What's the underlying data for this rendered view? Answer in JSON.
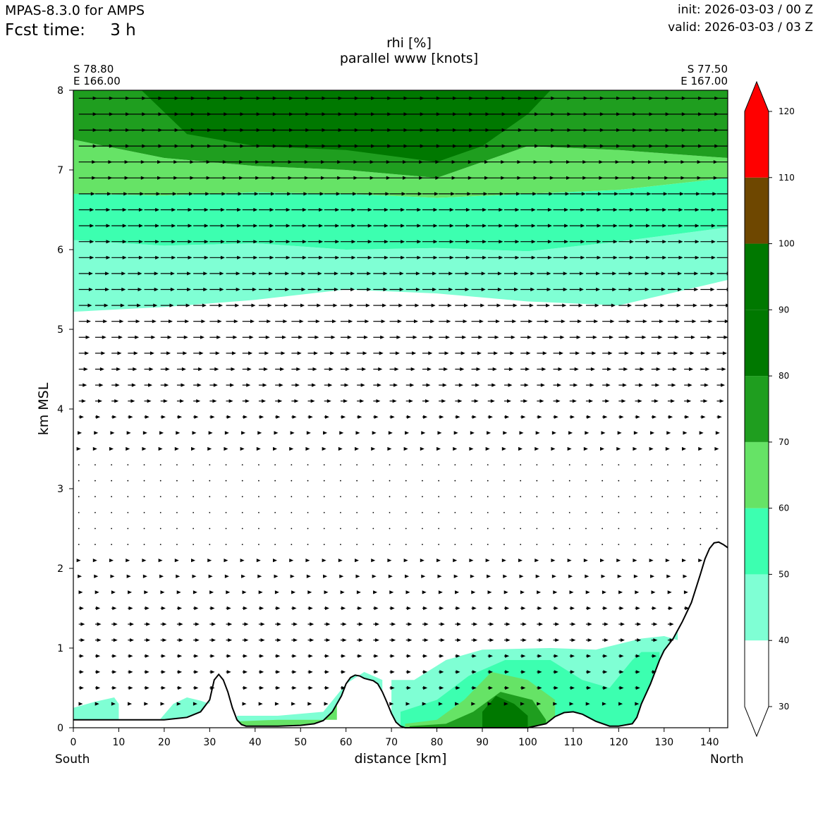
{
  "header": {
    "model": "MPAS-8.3.0 for AMPS",
    "fcst_label": "Fcst time:",
    "fcst_value": "3 h",
    "init": "init: 2026-03-03 / 00 Z",
    "valid": "valid: 2026-03-03 / 03 Z"
  },
  "corners": {
    "left_lat": "S 78.80",
    "left_lon": "E 166.00",
    "right_lat": "S 77.50",
    "right_lon": "E 167.00"
  },
  "direction": {
    "left": "South",
    "right": "North"
  },
  "chart_data": {
    "type": "heatmap",
    "title": "rhi [%]",
    "subtitle": "parallel www [knots]",
    "xlabel": "distance [km]",
    "ylabel": "km MSL",
    "xlim": [
      0,
      144
    ],
    "ylim": [
      0,
      8
    ],
    "xticks": [
      "0",
      "10",
      "20",
      "30",
      "40",
      "50",
      "60",
      "70",
      "80",
      "90",
      "100",
      "110",
      "120",
      "130",
      "140"
    ],
    "yticks": [
      "0",
      "1",
      "2",
      "3",
      "4",
      "5",
      "6",
      "7",
      "8"
    ],
    "colorbar": {
      "levels": [
        30,
        40,
        50,
        60,
        70,
        80,
        90,
        100,
        110,
        120
      ],
      "tick_labels": [
        "30",
        "40",
        "50",
        "60",
        "70",
        "80",
        "90",
        "100",
        "110",
        "120"
      ],
      "colors": [
        "#ffffff",
        "#7fffd4",
        "#3cffb0",
        "#66e366",
        "#1f9e1f",
        "#007800",
        "#007800",
        "#6e4700",
        "#ff0000"
      ]
    },
    "terrain_km": {
      "x": [
        0,
        10,
        20,
        25,
        28,
        30,
        31,
        32,
        33,
        34,
        35,
        36,
        37,
        38,
        40,
        45,
        50,
        53,
        55,
        57,
        59,
        60,
        61,
        62,
        63,
        64,
        66,
        67,
        68,
        69,
        70,
        71,
        72,
        73,
        75,
        80,
        85,
        100,
        104,
        106,
        108,
        110,
        112,
        115,
        118,
        120,
        123,
        124,
        125,
        127,
        129,
        130,
        132,
        134,
        136,
        138,
        139,
        140,
        141,
        142,
        143,
        144
      ],
      "y": [
        0.1,
        0.1,
        0.1,
        0.13,
        0.2,
        0.35,
        0.6,
        0.67,
        0.6,
        0.45,
        0.25,
        0.1,
        0.04,
        0.02,
        0.02,
        0.02,
        0.03,
        0.05,
        0.09,
        0.2,
        0.4,
        0.55,
        0.63,
        0.66,
        0.65,
        0.62,
        0.59,
        0.55,
        0.45,
        0.32,
        0.18,
        0.07,
        0.02,
        0.0,
        0.0,
        0.0,
        0.0,
        0.0,
        0.05,
        0.14,
        0.19,
        0.2,
        0.17,
        0.08,
        0.02,
        0.02,
        0.05,
        0.13,
        0.3,
        0.55,
        0.85,
        0.97,
        1.12,
        1.33,
        1.57,
        1.93,
        2.12,
        2.25,
        2.32,
        2.33,
        2.3,
        2.26
      ]
    },
    "rhi_layers": [
      {
        "range": "40-50",
        "x": [
          0,
          20,
          40,
          60,
          80,
          100,
          120,
          144
        ],
        "y_low": [
          5.22,
          5.28,
          5.37,
          5.5,
          5.45,
          5.35,
          5.3,
          5.62
        ],
        "y_high": [
          6.12,
          6.05,
          6.08,
          6.0,
          6.02,
          5.98,
          6.1,
          6.28
        ]
      },
      {
        "range": "50-60",
        "x": [
          0,
          20,
          40,
          60,
          80,
          100,
          120,
          144
        ],
        "y_low": [
          6.12,
          6.05,
          6.08,
          6.0,
          6.02,
          5.98,
          6.1,
          6.28
        ],
        "y_high": [
          6.7,
          6.68,
          6.72,
          6.7,
          6.65,
          6.7,
          6.75,
          6.9
        ]
      },
      {
        "range": "60-70",
        "x": [
          0,
          20,
          40,
          60,
          80,
          100,
          120,
          144
        ],
        "y_low": [
          6.7,
          6.68,
          6.72,
          6.7,
          6.65,
          6.7,
          6.75,
          6.9
        ],
        "y_high": [
          7.38,
          7.15,
          7.05,
          7.0,
          6.9,
          7.3,
          7.25,
          7.15
        ]
      },
      {
        "range": "70-80",
        "x": [
          0,
          20,
          40,
          60,
          80,
          100,
          120,
          144
        ],
        "y_low": [
          7.38,
          7.15,
          7.05,
          7.0,
          6.9,
          7.3,
          7.25,
          7.15
        ],
        "y_high": [
          8,
          8,
          8,
          8,
          8,
          8,
          8,
          8
        ]
      },
      {
        "range": "80-90",
        "x": [
          15,
          25,
          40,
          60,
          80,
          90,
          100,
          105
        ],
        "y_low": [
          8.0,
          7.45,
          7.3,
          7.25,
          7.1,
          7.3,
          7.7,
          8.0
        ],
        "y_high": [
          8,
          8,
          8,
          8,
          8,
          8,
          8,
          8
        ]
      }
    ],
    "wind_vectors": {
      "x_spacing_km": 3.6,
      "levels_km": [
        0.3,
        0.5,
        0.7,
        0.9,
        1.1,
        1.3,
        1.5,
        1.7,
        1.9,
        2.1,
        2.3,
        2.5,
        2.7,
        2.9,
        3.1,
        3.3,
        3.5,
        3.7,
        3.9,
        4.1,
        4.3,
        4.5,
        4.7,
        4.9,
        5.1,
        5.3,
        5.5,
        5.7,
        5.9,
        6.1,
        6.3,
        6.5,
        6.7,
        6.9,
        7.1,
        7.3,
        7.5,
        7.7,
        7.9
      ],
      "speed_knots_by_level": [
        8,
        10,
        10,
        10,
        12,
        12,
        10,
        8,
        6,
        4,
        3,
        2,
        2,
        2,
        2,
        2,
        4,
        6,
        10,
        14,
        16,
        18,
        20,
        22,
        24,
        26,
        28,
        28,
        30,
        30,
        30,
        30,
        32,
        34,
        34,
        36,
        36,
        36,
        36
      ],
      "direction": "northward"
    }
  }
}
